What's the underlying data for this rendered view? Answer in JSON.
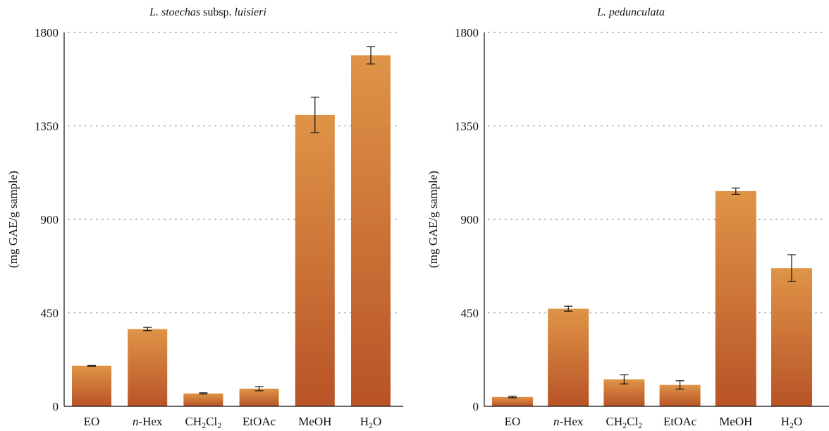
{
  "chart_data": [
    {
      "type": "bar",
      "title": "L. stoechas subsp. luisieri",
      "title_parts": [
        {
          "text": "L. stoechas",
          "italic": true
        },
        {
          "text": " subsp. ",
          "italic": false
        },
        {
          "text": "luisieri",
          "italic": true
        }
      ],
      "ylabel": "(mg GAE/g sample)",
      "ylim": [
        0,
        1800
      ],
      "yticks": [
        "0",
        "450",
        "900",
        "1350",
        "1800"
      ],
      "grid": true,
      "categories": [
        {
          "main": "EO",
          "parts": [
            {
              "t": "EO"
            }
          ]
        },
        {
          "main": "n-Hex",
          "parts": [
            {
              "t": "n",
              "i": true
            },
            {
              "t": "-Hex"
            }
          ]
        },
        {
          "main": "CH2Cl2",
          "parts": [
            {
              "t": "CH"
            },
            {
              "t": "2",
              "sub": true
            },
            {
              "t": "Cl"
            },
            {
              "t": "2",
              "sub": true
            }
          ]
        },
        {
          "main": "EtOAc",
          "parts": [
            {
              "t": "EtOAc"
            }
          ]
        },
        {
          "main": "MeOH",
          "parts": [
            {
              "t": "MeOH"
            }
          ]
        },
        {
          "main": "H2O",
          "parts": [
            {
              "t": "H"
            },
            {
              "t": "2",
              "sub": true
            },
            {
              "t": "O"
            }
          ]
        }
      ],
      "values": [
        195,
        372,
        62,
        85,
        1403,
        1690
      ],
      "errors": [
        2,
        8,
        3,
        10,
        85,
        42
      ]
    },
    {
      "type": "bar",
      "title": "L. pedunculata",
      "title_parts": [
        {
          "text": "L. pedunculata",
          "italic": true
        }
      ],
      "ylabel": "(mg GAE/g sample)",
      "ylim": [
        0,
        1800
      ],
      "yticks": [
        "0",
        "450",
        "900",
        "1350",
        "1800"
      ],
      "grid": true,
      "categories": [
        {
          "main": "EO",
          "parts": [
            {
              "t": "EO"
            }
          ]
        },
        {
          "main": "n-Hex",
          "parts": [
            {
              "t": "n",
              "i": true
            },
            {
              "t": "-Hex"
            }
          ]
        },
        {
          "main": "CH2Cl2",
          "parts": [
            {
              "t": "CH"
            },
            {
              "t": "2",
              "sub": true
            },
            {
              "t": "Cl"
            },
            {
              "t": "2",
              "sub": true
            }
          ]
        },
        {
          "main": "EtOAc",
          "parts": [
            {
              "t": "EtOAc"
            }
          ]
        },
        {
          "main": "MeOH",
          "parts": [
            {
              "t": "MeOH"
            }
          ]
        },
        {
          "main": "H2O",
          "parts": [
            {
              "t": "H"
            },
            {
              "t": "2",
              "sub": true
            },
            {
              "t": "O"
            }
          ]
        }
      ],
      "values": [
        45,
        470,
        130,
        103,
        1036,
        665
      ],
      "errors": [
        4,
        12,
        22,
        20,
        15,
        65
      ]
    }
  ],
  "colors": {
    "bar_top": "#df9447",
    "bar_bottom": "#b85327",
    "axis": "#111111",
    "grid": "#8a8a8a"
  }
}
